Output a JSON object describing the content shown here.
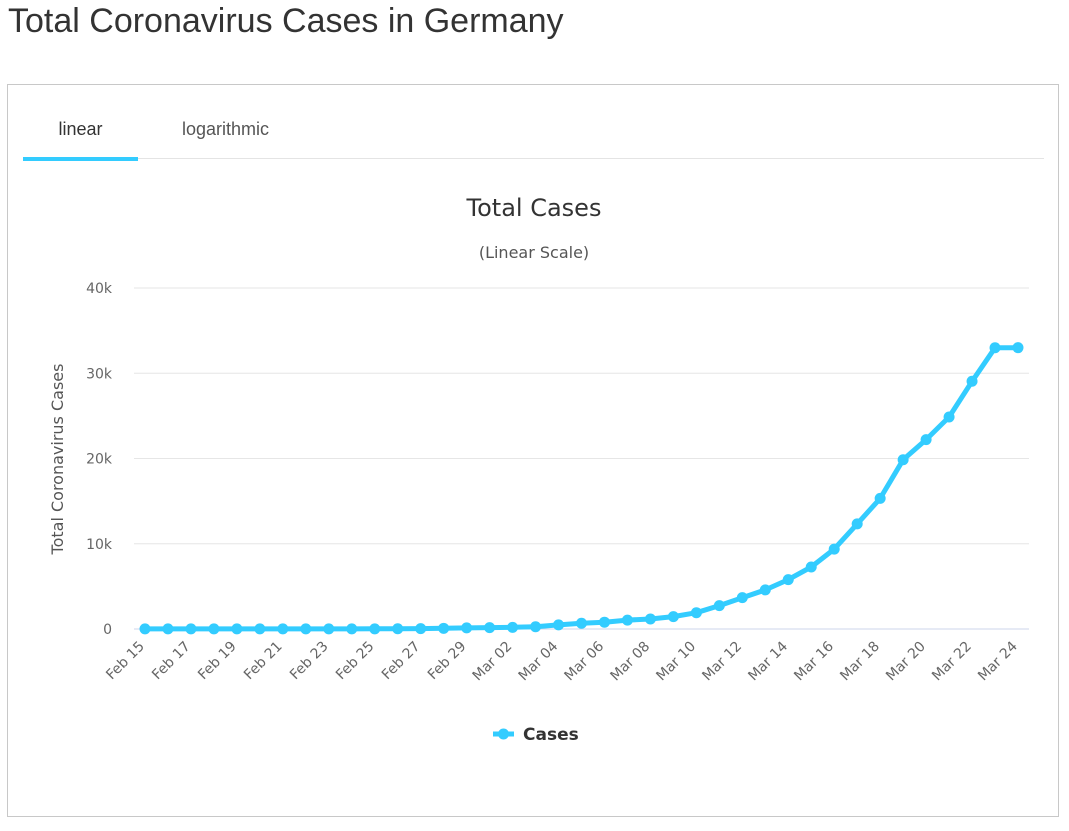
{
  "page": {
    "title": "Total Coronavirus Cases in Germany"
  },
  "tabs": [
    {
      "label": "linear",
      "active": true
    },
    {
      "label": "logarithmic",
      "active": false
    }
  ],
  "colors": {
    "series": "#33ccff",
    "grid": "#e6e6e6",
    "text": "#333333",
    "axis_text": "#666666"
  },
  "chart_data": {
    "type": "line",
    "title": "Total Cases",
    "subtitle": "(Linear Scale)",
    "ylabel": "Total Coronavirus Cases",
    "xlabel": "",
    "ylim": [
      0,
      40000
    ],
    "yticks": [
      0,
      10000,
      20000,
      30000,
      40000
    ],
    "ytick_labels": [
      "0",
      "10k",
      "20k",
      "30k",
      "40k"
    ],
    "grid": true,
    "legend_position": "bottom-center",
    "x": [
      "Feb 15",
      "Feb 16",
      "Feb 17",
      "Feb 18",
      "Feb 19",
      "Feb 20",
      "Feb 21",
      "Feb 22",
      "Feb 23",
      "Feb 24",
      "Feb 25",
      "Feb 26",
      "Feb 27",
      "Feb 28",
      "Feb 29",
      "Mar 01",
      "Mar 02",
      "Mar 03",
      "Mar 04",
      "Mar 05",
      "Mar 06",
      "Mar 07",
      "Mar 08",
      "Mar 09",
      "Mar 10",
      "Mar 11",
      "Mar 12",
      "Mar 13",
      "Mar 14",
      "Mar 15",
      "Mar 16",
      "Mar 17",
      "Mar 18",
      "Mar 19",
      "Mar 20",
      "Mar 21",
      "Mar 22",
      "Mar 23",
      "Mar 24"
    ],
    "xtick_labels": [
      "Feb 15",
      "Feb 17",
      "Feb 19",
      "Feb 21",
      "Feb 23",
      "Feb 25",
      "Feb 27",
      "Feb 29",
      "Mar 02",
      "Mar 04",
      "Mar 06",
      "Mar 08",
      "Mar 10",
      "Mar 12",
      "Mar 14",
      "Mar 16",
      "Mar 18",
      "Mar 20",
      "Mar 22",
      "Mar 24"
    ],
    "series": [
      {
        "name": "Cases",
        "values": [
          16,
          16,
          16,
          16,
          16,
          16,
          16,
          16,
          16,
          16,
          18,
          27,
          48,
          79,
          130,
          159,
          196,
          262,
          482,
          670,
          799,
          1040,
          1176,
          1457,
          1908,
          2745,
          3675,
          4585,
          5795,
          7272,
          9367,
          12327,
          15320,
          19848,
          22213,
          24873,
          29056,
          32986,
          33000
        ]
      }
    ]
  }
}
